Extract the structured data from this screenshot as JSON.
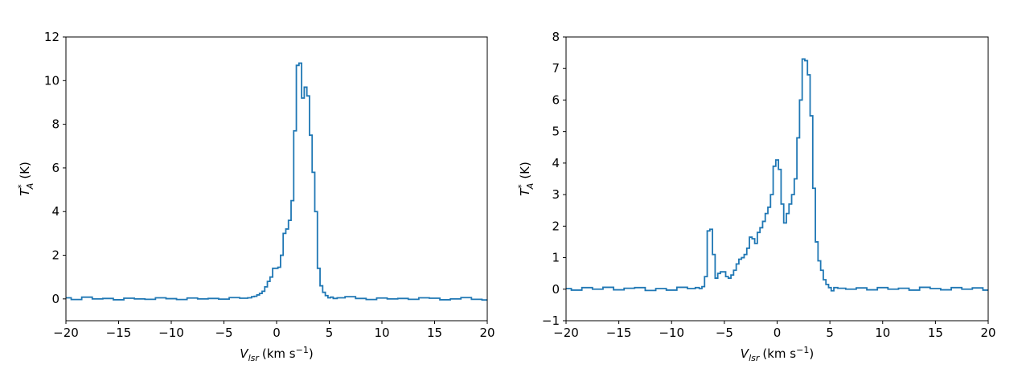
{
  "chart_data": [
    {
      "type": "line",
      "step": true,
      "x_label": {
        "symbol": "V",
        "subscript": "lsr",
        "unit": "(km s",
        "unit_exponent": "−1",
        "unit_end": ")"
      },
      "y_label": {
        "symbol": "T",
        "superscript": "*",
        "subscript": "A",
        "unit": "(K)"
      },
      "xlim": [
        -20,
        20
      ],
      "xticks": [
        {
          "value": -20,
          "label": "−20"
        },
        {
          "value": -15,
          "label": "−15"
        },
        {
          "value": -10,
          "label": "−10"
        },
        {
          "value": -5,
          "label": "−5"
        },
        0,
        5,
        10,
        15,
        20
      ],
      "ylim": [
        -1,
        12
      ],
      "yticks": [
        0,
        2,
        4,
        6,
        8,
        10,
        12
      ],
      "x": [
        -20,
        -19,
        -18,
        -17,
        -16,
        -15,
        -14,
        -13,
        -12,
        -11,
        -10,
        -9,
        -8,
        -7,
        -6,
        -5,
        -4,
        -3,
        -2.5,
        -2.25,
        -2,
        -1.75,
        -1.5,
        -1.25,
        -1,
        -0.75,
        -0.5,
        -0.25,
        0,
        0.25,
        0.5,
        0.75,
        1,
        1.25,
        1.5,
        1.75,
        2,
        2.25,
        2.5,
        2.75,
        3,
        3.25,
        3.5,
        3.75,
        4,
        4.25,
        4.5,
        4.75,
        5,
        5.25,
        5.5,
        6,
        7,
        8,
        9,
        10,
        11,
        12,
        13,
        14,
        15,
        16,
        17,
        18,
        19,
        20
      ],
      "series": [
        {
          "color": "#1f77b4",
          "values": [
            0.05,
            -0.03,
            0.08,
            0.0,
            0.02,
            -0.04,
            0.03,
            0.0,
            -0.02,
            0.05,
            0.01,
            -0.03,
            0.04,
            0.0,
            0.02,
            -0.01,
            0.06,
            0.03,
            0.05,
            0.1,
            0.12,
            0.18,
            0.25,
            0.35,
            0.55,
            0.8,
            1.0,
            1.4,
            1.4,
            1.45,
            2.0,
            3.0,
            3.2,
            3.6,
            4.5,
            7.7,
            10.7,
            10.8,
            9.2,
            9.7,
            9.3,
            7.5,
            5.8,
            4.0,
            1.4,
            0.6,
            0.3,
            0.15,
            0.05,
            0.08,
            0.02,
            0.05,
            0.1,
            0.02,
            -0.03,
            0.04,
            0.0,
            0.02,
            -0.02,
            0.05,
            0.03,
            -0.04,
            0.0,
            0.06,
            -0.02,
            -0.05
          ]
        }
      ]
    },
    {
      "type": "line",
      "step": true,
      "x_label": {
        "symbol": "V",
        "subscript": "lsr",
        "unit": "(km s",
        "unit_exponent": "−1",
        "unit_end": ")"
      },
      "y_label": {
        "symbol": "T",
        "superscript": "*",
        "subscript": "A",
        "unit": "(K)"
      },
      "xlim": [
        -20,
        20
      ],
      "xticks": [
        {
          "value": -20,
          "label": "−20"
        },
        {
          "value": -15,
          "label": "−15"
        },
        {
          "value": -10,
          "label": "−10"
        },
        {
          "value": -5,
          "label": "−5"
        },
        0,
        5,
        10,
        15,
        20
      ],
      "ylim": [
        -1,
        8
      ],
      "yticks": [
        {
          "value": -1,
          "label": "−1"
        },
        0,
        1,
        2,
        3,
        4,
        5,
        6,
        7,
        8
      ],
      "x": [
        -20,
        -19,
        -18,
        -17,
        -16,
        -15,
        -14,
        -13,
        -12,
        -11,
        -10,
        -9,
        -8,
        -7.5,
        -7.25,
        -7,
        -6.75,
        -6.5,
        -6.25,
        -6,
        -5.75,
        -5.5,
        -5.25,
        -5,
        -4.75,
        -4.5,
        -4.25,
        -4,
        -3.75,
        -3.5,
        -3.25,
        -3,
        -2.75,
        -2.5,
        -2.25,
        -2,
        -1.75,
        -1.5,
        -1.25,
        -1,
        -0.75,
        -0.5,
        -0.25,
        0,
        0.25,
        0.5,
        0.75,
        1,
        1.25,
        1.5,
        1.75,
        2,
        2.25,
        2.5,
        2.75,
        3,
        3.25,
        3.5,
        3.75,
        4,
        4.25,
        4.5,
        4.75,
        5,
        5.25,
        5.5,
        6,
        7,
        8,
        9,
        10,
        11,
        12,
        13,
        14,
        15,
        16,
        17,
        18,
        19,
        20
      ],
      "series": [
        {
          "color": "#1f77b4",
          "values": [
            0.02,
            -0.03,
            0.05,
            0.0,
            0.06,
            -0.02,
            0.03,
            0.05,
            -0.04,
            0.02,
            -0.03,
            0.06,
            0.02,
            0.05,
            0.02,
            0.08,
            0.4,
            1.85,
            1.9,
            1.1,
            0.35,
            0.5,
            0.55,
            0.55,
            0.4,
            0.35,
            0.45,
            0.6,
            0.8,
            0.95,
            1.0,
            1.1,
            1.3,
            1.65,
            1.6,
            1.45,
            1.8,
            1.95,
            2.15,
            2.4,
            2.6,
            3.0,
            3.9,
            4.1,
            3.8,
            2.7,
            2.1,
            2.4,
            2.7,
            3.0,
            3.5,
            4.8,
            6.0,
            7.3,
            7.25,
            6.8,
            5.5,
            3.2,
            1.5,
            0.9,
            0.6,
            0.3,
            0.15,
            0.05,
            -0.05,
            0.05,
            0.03,
            0.0,
            0.04,
            -0.02,
            0.05,
            0.0,
            0.03,
            -0.03,
            0.06,
            0.02,
            -0.02,
            0.05,
            0.0,
            0.04,
            -0.03
          ]
        }
      ]
    }
  ]
}
